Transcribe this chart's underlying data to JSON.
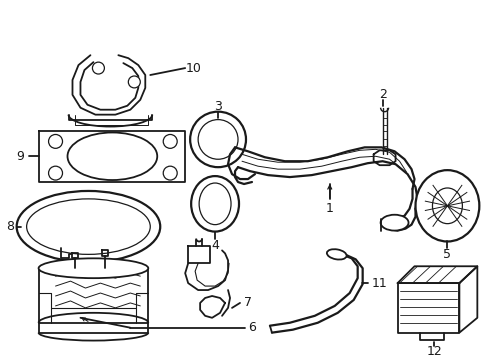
{
  "background_color": "#ffffff",
  "line_color": "#1a1a1a",
  "fig_width": 4.9,
  "fig_height": 3.6,
  "dpi": 100,
  "label_fontsize": 9
}
